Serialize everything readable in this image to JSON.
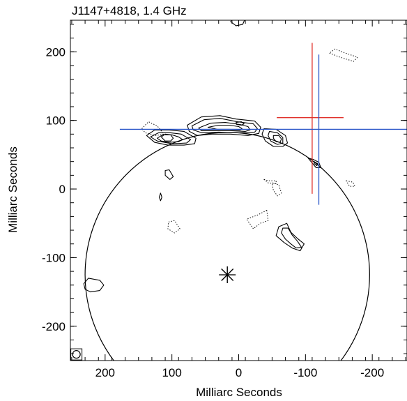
{
  "chart_data": {
    "type": "contour",
    "title": "J1147+4818, 1.4 GHz",
    "xlabel": "Milliarc Seconds",
    "ylabel": "Milliarc Seconds",
    "xlim": [
      252,
      -252
    ],
    "ylim": [
      -250,
      246
    ],
    "x_ticks": [
      200,
      100,
      0,
      -100,
      -200
    ],
    "y_ticks": [
      200,
      100,
      0,
      -100,
      -200
    ],
    "x_tick_labels": [
      "200",
      "100",
      "0",
      "-100",
      "-200"
    ],
    "y_tick_labels": [
      "200",
      "100",
      "0",
      "-100",
      "-200"
    ],
    "colors": {
      "red_cross": "#e0302a",
      "blue_cross": "#2a56c9",
      "ink": "#000000"
    },
    "circle": {
      "center": [
        17,
        -125
      ],
      "radius": 213
    },
    "star_marker": {
      "x": 17,
      "y": -125
    },
    "red_cross": {
      "x": -110,
      "y": 104,
      "h_range": [
        -57,
        -157
      ],
      "v_range": [
        213,
        -7
      ]
    },
    "blue_cross": {
      "x": -120,
      "y": 87,
      "h_range": [
        178,
        -252
      ],
      "v_range": [
        196,
        -23
      ]
    },
    "beam": {
      "x": 243,
      "y": -241
    },
    "contours": [
      {
        "style": "solid",
        "points": [
          [
            77,
            93
          ],
          [
            56,
            105
          ],
          [
            28,
            107
          ],
          [
            4,
            102
          ],
          [
            -24,
            99
          ],
          [
            -33,
            90
          ],
          [
            -30,
            81
          ],
          [
            -14,
            78
          ],
          [
            12,
            80
          ],
          [
            40,
            80
          ],
          [
            62,
            78
          ],
          [
            74,
            84
          ]
        ]
      },
      {
        "style": "solid",
        "points": [
          [
            70,
            92
          ],
          [
            52,
            101
          ],
          [
            28,
            103
          ],
          [
            2,
            98
          ],
          [
            -22,
            95
          ],
          [
            -28,
            88
          ],
          [
            -24,
            83
          ],
          [
            0,
            82
          ],
          [
            30,
            83
          ],
          [
            55,
            82
          ],
          [
            68,
            86
          ]
        ]
      },
      {
        "style": "solid",
        "points": [
          [
            60,
            89
          ],
          [
            42,
            96
          ],
          [
            20,
            97
          ],
          [
            -2,
            94
          ],
          [
            -14,
            91
          ],
          [
            -17,
            86
          ],
          [
            -10,
            84
          ],
          [
            10,
            85
          ],
          [
            36,
            85
          ],
          [
            56,
            85
          ]
        ]
      },
      {
        "style": "solid",
        "points": [
          [
            46,
            90
          ],
          [
            30,
            93
          ],
          [
            14,
            93
          ],
          [
            0,
            91
          ],
          [
            -5,
            88
          ],
          [
            -2,
            86
          ],
          [
            14,
            87
          ],
          [
            32,
            87
          ]
        ]
      },
      {
        "style": "solid",
        "points": [
          [
            4,
            97
          ],
          [
            -4,
            98
          ],
          [
            -8,
            95
          ],
          [
            -4,
            93
          ],
          [
            3,
            94
          ]
        ]
      },
      {
        "style": "solid",
        "points": [
          [
            138,
            78
          ],
          [
            126,
            86
          ],
          [
            104,
            86
          ],
          [
            82,
            84
          ],
          [
            64,
            74
          ],
          [
            66,
            66
          ],
          [
            82,
            64
          ],
          [
            106,
            64
          ],
          [
            126,
            68
          ]
        ]
      },
      {
        "style": "solid",
        "points": [
          [
            132,
            76
          ],
          [
            120,
            82
          ],
          [
            102,
            82
          ],
          [
            86,
            80
          ],
          [
            72,
            72
          ],
          [
            78,
            67
          ],
          [
            100,
            66
          ],
          [
            122,
            70
          ]
        ]
      },
      {
        "style": "solid",
        "points": [
          [
            122,
            74
          ],
          [
            114,
            79
          ],
          [
            100,
            79
          ],
          [
            90,
            76
          ],
          [
            84,
            72
          ],
          [
            90,
            69
          ],
          [
            104,
            68
          ],
          [
            116,
            70
          ]
        ]
      },
      {
        "style": "solid",
        "points": [
          [
            116,
            76
          ],
          [
            110,
            80
          ],
          [
            102,
            79
          ],
          [
            98,
            74
          ],
          [
            102,
            70
          ],
          [
            110,
            70
          ]
        ]
      },
      {
        "style": "solid",
        "points": [
          [
            -38,
            88
          ],
          [
            -56,
            87
          ],
          [
            -70,
            78
          ],
          [
            -73,
            67
          ],
          [
            -66,
            62
          ],
          [
            -52,
            62
          ],
          [
            -40,
            70
          ],
          [
            -35,
            80
          ]
        ]
      },
      {
        "style": "solid",
        "points": [
          [
            -46,
            84
          ],
          [
            -58,
            82
          ],
          [
            -66,
            75
          ],
          [
            -66,
            67
          ],
          [
            -58,
            65
          ],
          [
            -48,
            70
          ],
          [
            -44,
            78
          ]
        ]
      },
      {
        "style": "solid",
        "points": [
          [
            -52,
            78
          ],
          [
            -60,
            78
          ],
          [
            -64,
            73
          ],
          [
            -62,
            68
          ],
          [
            -56,
            69
          ],
          [
            -52,
            74
          ]
        ]
      },
      {
        "style": "solid",
        "points": [
          [
            -104,
            45
          ],
          [
            -112,
            43
          ],
          [
            -120,
            39
          ],
          [
            -123,
            31
          ],
          [
            -116,
            31
          ],
          [
            -110,
            38
          ]
        ]
      },
      {
        "style": "solid",
        "points": [
          [
            -113,
            40
          ],
          [
            -118,
            37
          ],
          [
            -117,
            34
          ],
          [
            -113,
            37
          ]
        ]
      },
      {
        "style": "solid",
        "points": [
          [
            -60,
            -55
          ],
          [
            -72,
            -50
          ],
          [
            -78,
            -63
          ],
          [
            -88,
            -72
          ],
          [
            -98,
            -80
          ],
          [
            -92,
            -90
          ],
          [
            -80,
            -86
          ],
          [
            -68,
            -78
          ],
          [
            -56,
            -68
          ]
        ]
      },
      {
        "style": "solid",
        "points": [
          [
            -66,
            -57
          ],
          [
            -74,
            -57
          ],
          [
            -80,
            -67
          ],
          [
            -88,
            -76
          ],
          [
            -94,
            -85
          ],
          [
            -86,
            -86
          ],
          [
            -78,
            -80
          ],
          [
            -70,
            -73
          ],
          [
            -64,
            -64
          ]
        ]
      },
      {
        "style": "solid",
        "points": [
          [
            225,
            -130
          ],
          [
            208,
            -133
          ],
          [
            202,
            -140
          ],
          [
            208,
            -148
          ],
          [
            222,
            -150
          ],
          [
            230,
            -146
          ],
          [
            232,
            -138
          ]
        ]
      },
      {
        "style": "solid",
        "points": [
          [
            110,
            27
          ],
          [
            104,
            28
          ],
          [
            98,
            18
          ],
          [
            103,
            14
          ],
          [
            110,
            20
          ]
        ]
      },
      {
        "style": "solid",
        "points": [
          [
            117,
            -6
          ],
          [
            115,
            -12
          ],
          [
            117,
            -17
          ],
          [
            119,
            -12
          ]
        ]
      },
      {
        "style": "solid",
        "points": [
          [
            8,
            252
          ],
          [
            0,
            252
          ],
          [
            -10,
            249
          ],
          [
            -6,
            240
          ],
          [
            4,
            238
          ],
          [
            12,
            244
          ]
        ]
      },
      {
        "style": "dotted",
        "points": [
          [
            145,
            88
          ],
          [
            135,
            98
          ],
          [
            122,
            92
          ],
          [
            112,
            80
          ],
          [
            124,
            78
          ],
          [
            140,
            82
          ]
        ]
      },
      {
        "style": "dotted",
        "points": [
          [
            105,
            -48
          ],
          [
            96,
            -46
          ],
          [
            88,
            -58
          ],
          [
            96,
            -64
          ],
          [
            106,
            -58
          ]
        ]
      },
      {
        "style": "dotted",
        "points": [
          [
            -42,
            -31
          ],
          [
            -28,
            -38
          ],
          [
            -12,
            -44
          ],
          [
            -22,
            -58
          ],
          [
            -32,
            -50
          ],
          [
            -44,
            -46
          ]
        ]
      },
      {
        "style": "dotted",
        "points": [
          [
            -38,
            14
          ],
          [
            -44,
            12
          ],
          [
            -56,
            12
          ],
          [
            -56,
            8
          ],
          [
            -44,
            9
          ]
        ]
      },
      {
        "style": "dotted",
        "points": [
          [
            -50,
            9
          ],
          [
            -60,
            6
          ],
          [
            -64,
            -6
          ],
          [
            -58,
            -10
          ],
          [
            -52,
            -2
          ]
        ]
      },
      {
        "style": "dotted",
        "points": [
          [
            -136,
            198
          ],
          [
            -152,
            192
          ],
          [
            -172,
            186
          ],
          [
            -178,
            192
          ],
          [
            -160,
            198
          ],
          [
            -144,
            204
          ]
        ]
      },
      {
        "style": "dotted",
        "points": [
          [
            -161,
            12
          ],
          [
            -171,
            10
          ],
          [
            -174,
            4
          ],
          [
            -166,
            4
          ]
        ]
      }
    ]
  }
}
